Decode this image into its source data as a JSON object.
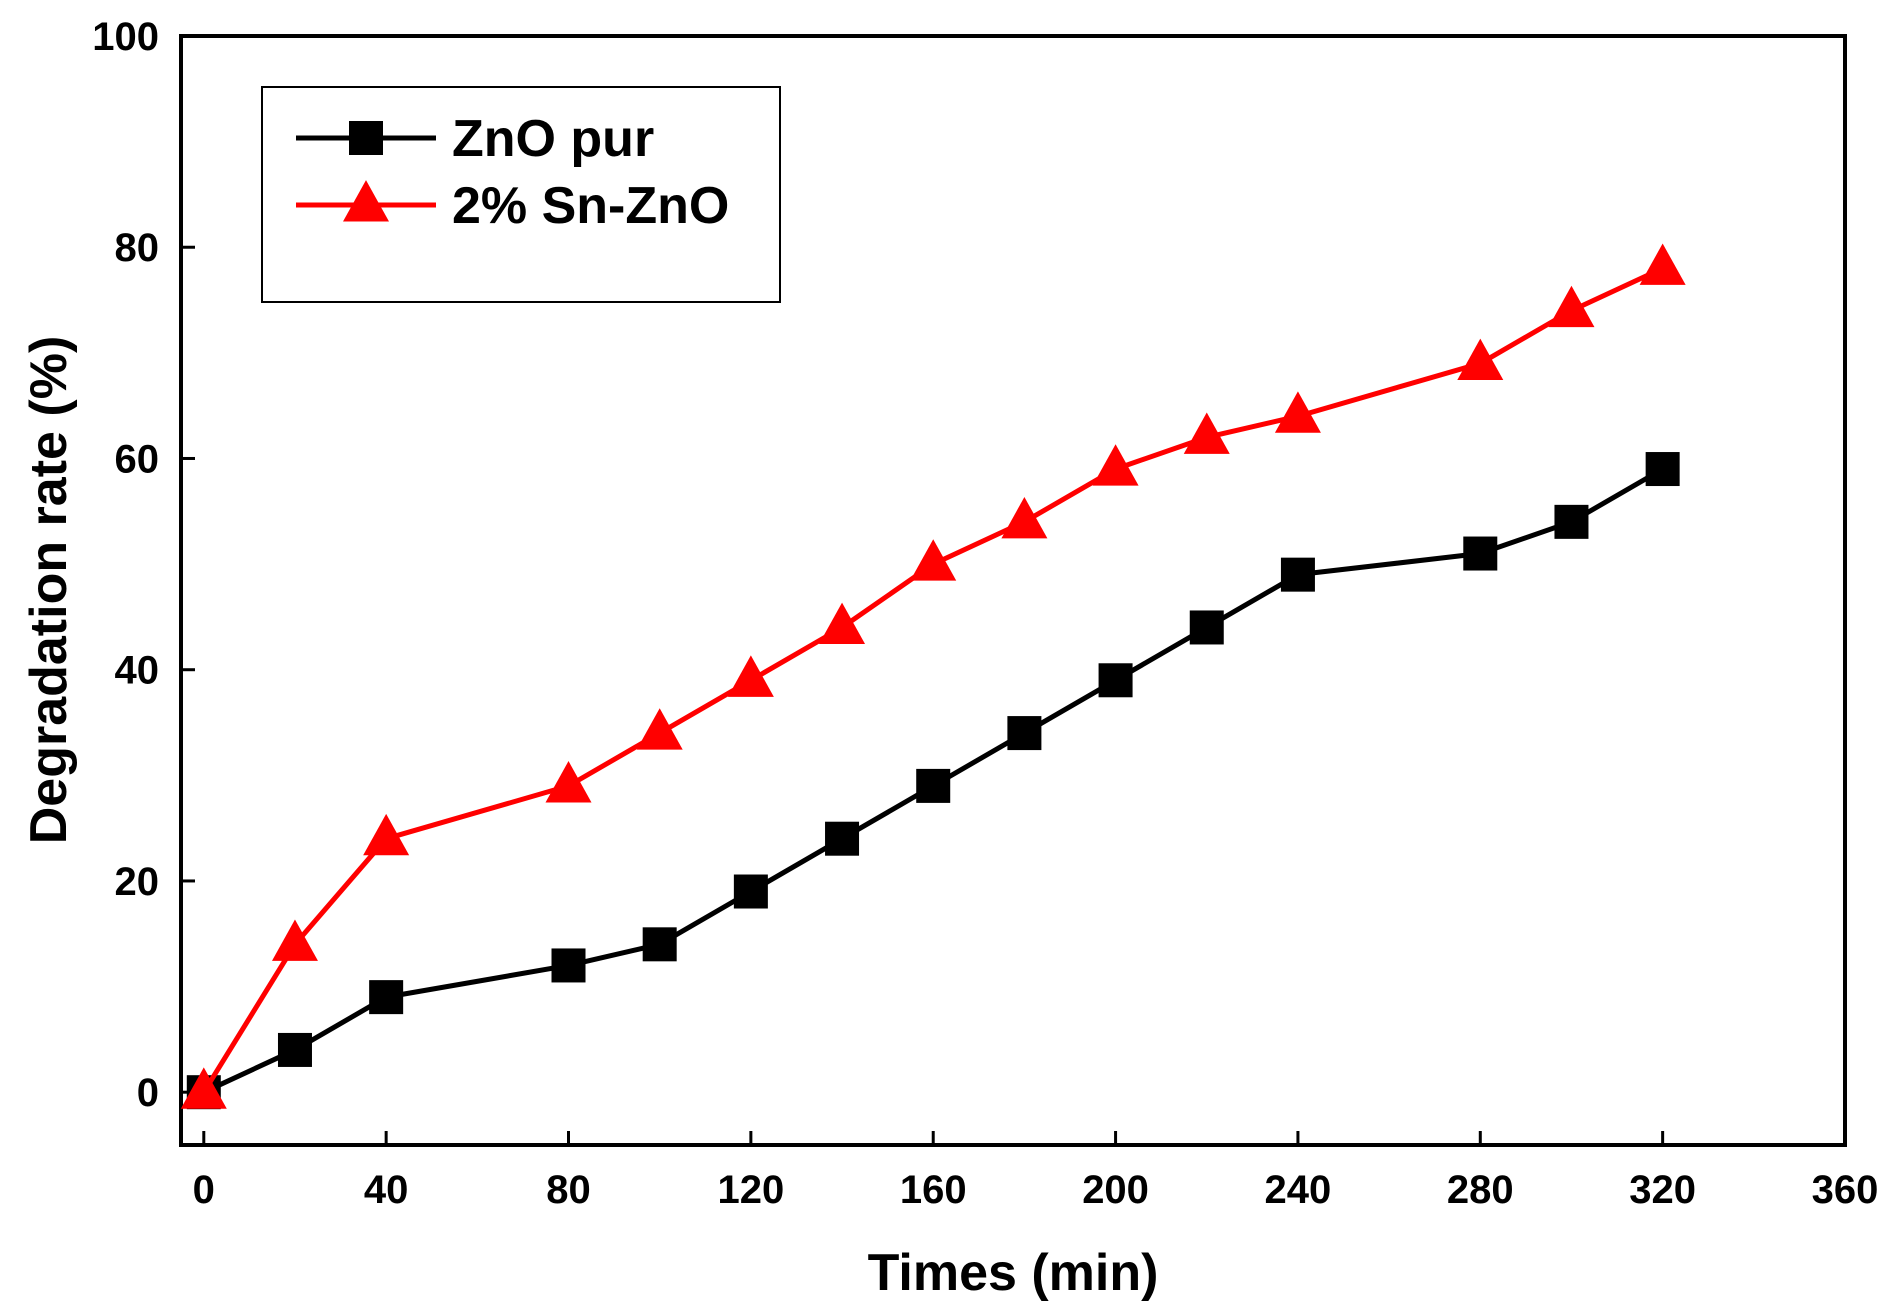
{
  "chart_data": {
    "type": "line",
    "title": "",
    "xlabel": "Times (min)",
    "ylabel": "Degradation rate (%)",
    "xlim": [
      -5,
      360
    ],
    "ylim": [
      -5,
      100
    ],
    "xticks": [
      0,
      40,
      80,
      120,
      160,
      200,
      240,
      280,
      320,
      360
    ],
    "yticks": [
      0,
      20,
      40,
      60,
      80,
      100
    ],
    "grid": false,
    "legend_position": "top-left",
    "series": [
      {
        "name": "ZnO pur",
        "color": "#000000",
        "marker": "square",
        "x": [
          0,
          20,
          40,
          80,
          100,
          120,
          140,
          160,
          180,
          200,
          220,
          240,
          280,
          300,
          320
        ],
        "y": [
          0,
          4,
          9,
          12,
          14,
          19,
          24,
          29,
          34,
          39,
          44,
          49,
          51,
          54,
          59
        ]
      },
      {
        "name": "2% Sn-ZnO",
        "color": "#ff0000",
        "marker": "triangle",
        "x": [
          0,
          20,
          40,
          80,
          100,
          120,
          140,
          160,
          180,
          200,
          220,
          240,
          280,
          300,
          320
        ],
        "y": [
          0,
          14,
          24,
          29,
          34,
          39,
          44,
          50,
          54,
          59,
          62,
          64,
          69,
          74,
          78
        ]
      }
    ]
  }
}
